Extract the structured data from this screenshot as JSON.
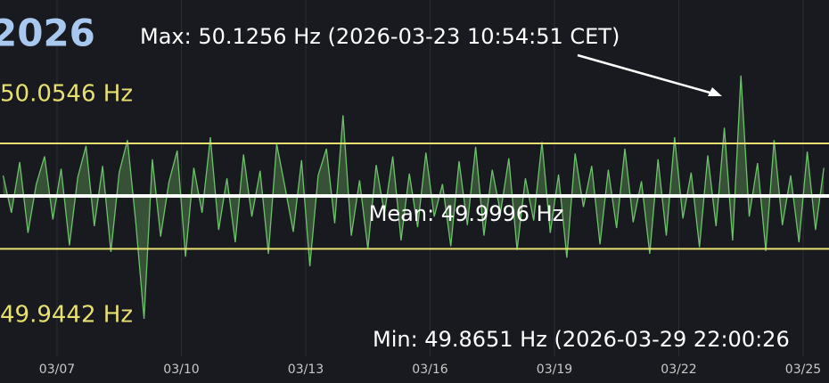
{
  "chart_data": {
    "type": "line",
    "title": "2026",
    "x": [
      5.7,
      5.9,
      6.1,
      6.3,
      6.5,
      6.7,
      6.9,
      7.1,
      7.3,
      7.5,
      7.7,
      7.9,
      8.1,
      8.3,
      8.5,
      8.7,
      8.9,
      9.1,
      9.3,
      9.5,
      9.7,
      9.9,
      10.1,
      10.3,
      10.5,
      10.7,
      10.9,
      11.1,
      11.3,
      11.5,
      11.7,
      11.9,
      12.1,
      12.3,
      12.5,
      12.7,
      12.9,
      13.1,
      13.3,
      13.5,
      13.7,
      13.9,
      14.1,
      14.3,
      14.5,
      14.7,
      14.9,
      15.1,
      15.3,
      15.5,
      15.7,
      15.9,
      16.1,
      16.3,
      16.5,
      16.7,
      16.9,
      17.1,
      17.3,
      17.5,
      17.7,
      17.9,
      18.1,
      18.3,
      18.5,
      18.7,
      18.9,
      19.1,
      19.3,
      19.5,
      19.7,
      19.9,
      20.1,
      20.3,
      20.5,
      20.7,
      20.9,
      21.1,
      21.3,
      21.5,
      21.7,
      21.9,
      22.1,
      22.3,
      22.5,
      22.7,
      22.9,
      23.1,
      23.3,
      23.5,
      23.7,
      23.9,
      24.1,
      24.3,
      24.5,
      24.7,
      24.9,
      25.1,
      25.3,
      25.5
    ],
    "values": [
      50.021,
      49.982,
      50.035,
      49.961,
      50.012,
      50.041,
      49.975,
      50.028,
      49.948,
      50.019,
      50.052,
      49.968,
      50.031,
      49.941,
      50.024,
      50.058,
      49.972,
      49.871,
      50.038,
      49.957,
      50.014,
      50.047,
      49.936,
      50.029,
      49.982,
      50.061,
      49.964,
      50.018,
      49.951,
      50.043,
      49.978,
      50.026,
      49.939,
      50.054,
      50.009,
      49.962,
      50.037,
      49.926,
      50.021,
      50.049,
      49.971,
      50.084,
      49.958,
      50.016,
      49.944,
      50.032,
      49.981,
      50.041,
      49.953,
      50.023,
      49.967,
      50.045,
      49.978,
      50.012,
      49.947,
      50.036,
      49.969,
      50.051,
      49.958,
      50.027,
      49.982,
      50.039,
      49.943,
      50.018,
      49.974,
      50.056,
      49.961,
      50.022,
      49.935,
      50.044,
      49.988,
      50.031,
      49.949,
      50.027,
      49.966,
      50.049,
      49.972,
      50.015,
      49.939,
      50.038,
      49.958,
      50.061,
      49.976,
      50.024,
      49.946,
      50.042,
      49.968,
      50.071,
      49.953,
      50.1256,
      49.978,
      50.034,
      49.942,
      50.058,
      49.969,
      50.021,
      49.951,
      50.046,
      49.964,
      50.029
    ],
    "color": "#6cc26a",
    "fill_color": "#3d5c3b",
    "xlim": [
      5.624,
      25.624
    ],
    "ylim": [
      49.8365,
      50.2046
    ],
    "xticks": [
      {
        "value": 7,
        "label": "03/07"
      },
      {
        "value": 10,
        "label": "03/10"
      },
      {
        "value": 13,
        "label": "03/13"
      },
      {
        "value": 16,
        "label": "03/16"
      },
      {
        "value": 19,
        "label": "03/19"
      },
      {
        "value": 22,
        "label": "03/22"
      },
      {
        "value": 25,
        "label": "03/25"
      }
    ],
    "grid": true,
    "hlines": [
      {
        "value": 50.0546,
        "label": "50.0546 Hz",
        "color": "#e8e070"
      },
      {
        "value": 49.9996,
        "label": "Mean: 49.9996 Hz",
        "color": "#ffffff"
      },
      {
        "value": 49.9442,
        "label": "49.9442 Hz",
        "color": "#e8e070"
      }
    ],
    "annotations": [
      "Max: 50.1256 Hz (2026-03-23 10:54:51 CET)",
      "Min: 49.8651 Hz (2026-03-29 22:00:26"
    ]
  }
}
